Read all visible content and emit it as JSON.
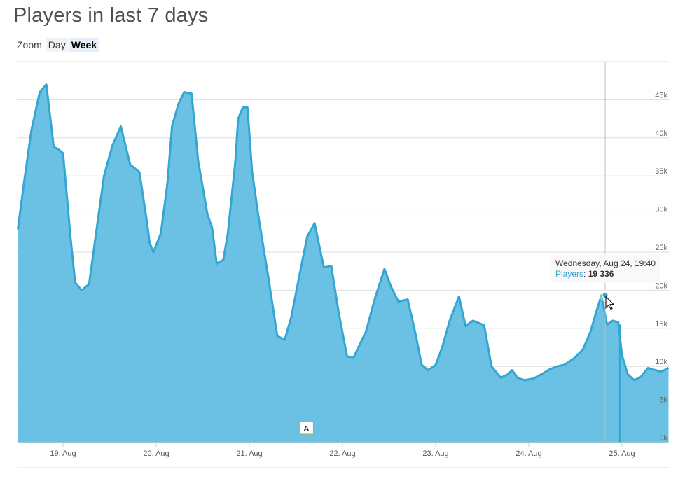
{
  "title": "Players in last 7 days",
  "zoom": {
    "label": "Zoom",
    "options": [
      "Day",
      "Week"
    ],
    "selected": "Week"
  },
  "tooltip": {
    "date": "Wednesday, Aug 24, 19:40",
    "series": "Players",
    "separator": ":",
    "value": "19 336"
  },
  "flag": {
    "label": "A",
    "x": 2.612
  },
  "colors": {
    "area": "#6ac1e3",
    "line": "#34a6d2",
    "grid": "#dedede",
    "crosshair": "#bdbdbd"
  },
  "chart_data": {
    "type": "area",
    "title": "Players in last 7 days",
    "xlabel": "",
    "ylabel": "",
    "x_unit": "days since 19 Aug",
    "x_ticks": [
      {
        "x": 0,
        "label": "19. Aug"
      },
      {
        "x": 1,
        "label": "20. Aug"
      },
      {
        "x": 2,
        "label": "21. Aug"
      },
      {
        "x": 3,
        "label": "22. Aug"
      },
      {
        "x": 4,
        "label": "23. Aug"
      },
      {
        "x": 5,
        "label": "24. Aug"
      },
      {
        "x": 6,
        "label": "25. Aug"
      }
    ],
    "xlim": [
      -0.485,
      6.5
    ],
    "ylim": [
      0,
      50000
    ],
    "y_ticks": [
      {
        "v": 0,
        "label": "0k"
      },
      {
        "v": 5000,
        "label": "5k"
      },
      {
        "v": 10000,
        "label": "10k"
      },
      {
        "v": 15000,
        "label": "15k"
      },
      {
        "v": 20000,
        "label": "20k"
      },
      {
        "v": 25000,
        "label": "25k"
      },
      {
        "v": 30000,
        "label": "30k"
      },
      {
        "v": 35000,
        "label": "35k"
      },
      {
        "v": 40000,
        "label": "40k"
      },
      {
        "v": 45000,
        "label": "45k"
      }
    ],
    "grid": true,
    "series": [
      {
        "name": "Players",
        "x": [
          -0.485,
          -0.42,
          -0.34,
          -0.25,
          -0.18,
          -0.15,
          -0.1,
          -0.05,
          0.0,
          0.08,
          0.13,
          0.2,
          0.28,
          0.36,
          0.44,
          0.53,
          0.62,
          0.72,
          0.82,
          0.9,
          0.93,
          0.97,
          1.05,
          1.12,
          1.17,
          1.24,
          1.3,
          1.38,
          1.45,
          1.55,
          1.6,
          1.65,
          1.72,
          1.77,
          1.85,
          1.88,
          1.93,
          1.98,
          2.03,
          2.1,
          2.2,
          2.3,
          2.38,
          2.45,
          2.53,
          2.62,
          2.7,
          2.8,
          2.88,
          2.96,
          3.05,
          3.12,
          3.17,
          3.25,
          3.35,
          3.45,
          3.52,
          3.6,
          3.7,
          3.78,
          3.85,
          3.92,
          4.0,
          4.07,
          4.15,
          4.25,
          4.32,
          4.4,
          4.52,
          4.6,
          4.7,
          4.78,
          4.82,
          4.88,
          4.95,
          5.05,
          5.14,
          5.22,
          5.3,
          5.38,
          5.48,
          5.58,
          5.66,
          5.72,
          5.78,
          5.84,
          5.9,
          5.96,
          6.0,
          6.06,
          6.13,
          6.2,
          6.28,
          6.36,
          6.42,
          6.5
        ],
        "y": [
          28000,
          34000,
          41000,
          46000,
          47000,
          44000,
          38800,
          38500,
          38000,
          27000,
          21000,
          20000,
          20800,
          28000,
          35000,
          39000,
          41500,
          36500,
          35500,
          29000,
          26200,
          25000,
          27500,
          34000,
          41500,
          44500,
          46000,
          45800,
          37000,
          30000,
          28200,
          23500,
          24000,
          27500,
          37000,
          42500,
          44000,
          44000,
          35500,
          29500,
          22000,
          14000,
          13500,
          16500,
          21500,
          27000,
          28800,
          23000,
          23200,
          17000,
          11300,
          11200,
          12500,
          14500,
          19000,
          22800,
          20500,
          18500,
          18800,
          14500,
          10200,
          9500,
          10200,
          12500,
          16000,
          19200,
          15300,
          16000,
          15400,
          10000,
          8500,
          9000,
          9500,
          8500,
          8200,
          8400,
          9000,
          9600,
          10000,
          10200,
          11000,
          12200,
          14500,
          17000,
          19336,
          15500,
          16000,
          15800,
          11500,
          9000,
          8200,
          8600,
          9800,
          9500,
          9300,
          9800
        ]
      }
    ],
    "highlight": {
      "x": 5.82,
      "y": 19336
    }
  }
}
